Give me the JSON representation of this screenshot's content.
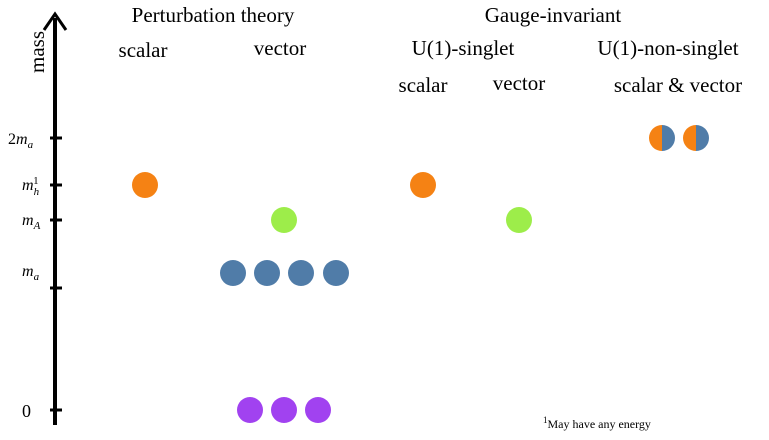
{
  "axis_label": "mass",
  "levels": [
    {
      "prefix": "2",
      "base": "m",
      "sub": "a"
    },
    {
      "base": "m",
      "sub": "h",
      "sup": "1"
    },
    {
      "base": "m",
      "sub": "A"
    },
    {
      "base": "m",
      "sub": "a"
    },
    {
      "base": "0"
    }
  ],
  "groups": [
    {
      "title": "Perturbation theory",
      "columns": [
        "scalar",
        "vector"
      ]
    },
    {
      "title": "Gauge-invariant",
      "subgroups": [
        {
          "title": "U(1)-singlet",
          "columns": [
            "scalar",
            "vector"
          ]
        },
        {
          "title": "U(1)-non-singlet",
          "columns": [
            "scalar & vector"
          ]
        }
      ]
    }
  ],
  "footnote": {
    "mark": "1",
    "text": "May have any energy"
  }
}
